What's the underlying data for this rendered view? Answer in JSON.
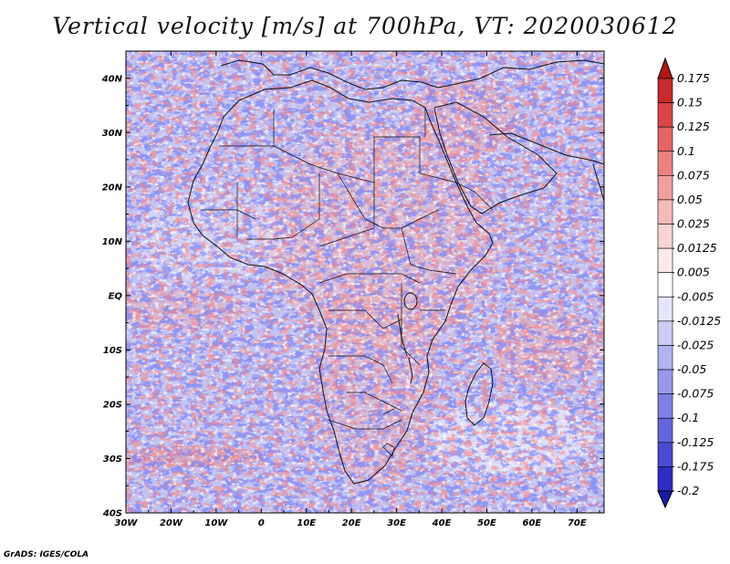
{
  "title": "Vertical velocity [m/s] at 700hPa, VT: 2020030612",
  "credit": "GrADS: IGES/COLA",
  "map": {
    "lon_range": [
      -30,
      76
    ],
    "lat_range": [
      -40,
      45
    ],
    "lon_ticks": [
      "30W",
      "20W",
      "10W",
      "0",
      "10E",
      "20E",
      "30E",
      "40E",
      "50E",
      "60E",
      "70E"
    ],
    "lat_ticks": [
      "40N",
      "30N",
      "20N",
      "10N",
      "EQ",
      "10S",
      "20S",
      "30S",
      "40S"
    ],
    "variable": "vertical velocity",
    "level": "700hPa",
    "valid_time": "2020030612"
  },
  "colorbar": {
    "labels": [
      "0.175",
      "0.15",
      "0.125",
      "0.1",
      "0.075",
      "0.05",
      "0.025",
      "0.0125",
      "0.005",
      "-0.005",
      "-0.0125",
      "-0.025",
      "-0.05",
      "-0.075",
      "-0.1",
      "-0.125",
      "-0.175",
      "-0.2"
    ],
    "colors": [
      "#b01818",
      "#c62a2a",
      "#d94646",
      "#e46464",
      "#ec8282",
      "#f19f9f",
      "#f5baba",
      "#f9d4d4",
      "#fceaea",
      "#ffffff",
      "#e6e6fb",
      "#cdcdf6",
      "#b3b3f0",
      "#9999ea",
      "#7f7fe3",
      "#6565dc",
      "#4a4ad2",
      "#2e2ec4",
      "#1a1aa8"
    ]
  }
}
